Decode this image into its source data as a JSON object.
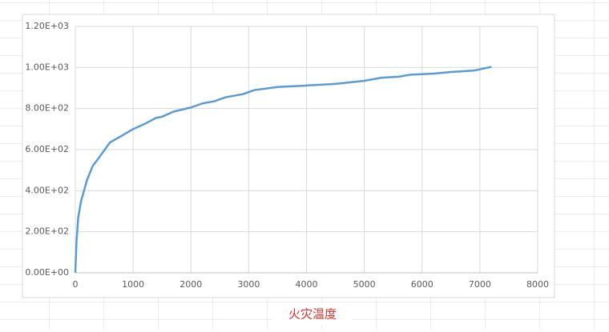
{
  "chart_data": {
    "type": "line",
    "xlabel": "火灾温度",
    "x": [
      0,
      20,
      50,
      100,
      200,
      300,
      400,
      600,
      800,
      1000,
      1200,
      1400,
      1500,
      1700,
      2000,
      2200,
      2400,
      2600,
      2900,
      3100,
      3500,
      3700,
      4000,
      4500,
      5000,
      5300,
      5600,
      5800,
      6200,
      6500,
      6900,
      7200
    ],
    "series": [
      {
        "name": "火灾温度",
        "color": "#5b9bd5",
        "values": [
          0,
          150,
          270,
          350,
          450,
          520,
          557,
          635,
          667,
          700,
          725,
          755,
          760,
          785,
          805,
          825,
          835,
          855,
          870,
          890,
          905,
          908,
          912,
          920,
          935,
          950,
          955,
          965,
          970,
          978,
          985,
          1003
        ]
      }
    ],
    "xlim": [
      0,
      8000
    ],
    "xticks": [
      0,
      1000,
      2000,
      3000,
      4000,
      5000,
      6000,
      7000,
      8000
    ],
    "ylim": [
      0,
      1200
    ],
    "yticks": [
      {
        "value": 0,
        "label": "0.00E+00"
      },
      {
        "value": 200,
        "label": "2.00E+02"
      },
      {
        "value": 400,
        "label": "4.00E+02"
      },
      {
        "value": 600,
        "label": "6.00E+02"
      },
      {
        "value": 800,
        "label": "8.00E+02"
      },
      {
        "value": 1000,
        "label": "1.00E+03"
      },
      {
        "value": 1200,
        "label": "1.20E+03"
      }
    ],
    "grid": true
  }
}
